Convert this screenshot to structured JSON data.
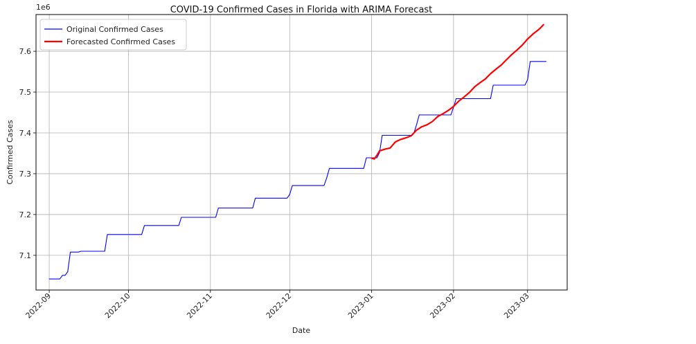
{
  "chart_data": {
    "type": "line",
    "title": "COVID-19 Confirmed Cases in Florida with ARIMA Forecast",
    "xlabel": "Date",
    "ylabel": "Confirmed Cases",
    "y_offset_label": "1e6",
    "y_multiplier": 1000000,
    "xlim": [
      "2022-08-27",
      "2023-03-16"
    ],
    "ylim": [
      7.015,
      7.69
    ],
    "x_ticks": [
      {
        "date": "2022-09-01",
        "label": "2022-09"
      },
      {
        "date": "2022-10-01",
        "label": "2022-10"
      },
      {
        "date": "2022-11-01",
        "label": "2022-11"
      },
      {
        "date": "2022-12-01",
        "label": "2022-12"
      },
      {
        "date": "2023-01-01",
        "label": "2023-01"
      },
      {
        "date": "2023-02-01",
        "label": "2023-02"
      },
      {
        "date": "2023-03-01",
        "label": "2023-03"
      }
    ],
    "y_ticks": [
      {
        "value": 7.1,
        "label": "7.1"
      },
      {
        "value": 7.2,
        "label": "7.2"
      },
      {
        "value": 7.3,
        "label": "7.3"
      },
      {
        "value": 7.4,
        "label": "7.4"
      },
      {
        "value": 7.5,
        "label": "7.5"
      },
      {
        "value": 7.6,
        "label": "7.6"
      }
    ],
    "grid": true,
    "legend_placement": "top-left",
    "series": [
      {
        "name": "Original Confirmed Cases",
        "color": "#0000ff",
        "points": [
          [
            "2022-09-01",
            7.042
          ],
          [
            "2022-09-05",
            7.042
          ],
          [
            "2022-09-06",
            7.051
          ],
          [
            "2022-09-07",
            7.051
          ],
          [
            "2022-09-08",
            7.06
          ],
          [
            "2022-09-09",
            7.108
          ],
          [
            "2022-09-12",
            7.108
          ],
          [
            "2022-09-13",
            7.11
          ],
          [
            "2022-09-22",
            7.11
          ],
          [
            "2022-09-23",
            7.151
          ],
          [
            "2022-10-06",
            7.151
          ],
          [
            "2022-10-07",
            7.173
          ],
          [
            "2022-10-20",
            7.173
          ],
          [
            "2022-10-21",
            7.193
          ],
          [
            "2022-11-03",
            7.193
          ],
          [
            "2022-11-04",
            7.216
          ],
          [
            "2022-11-17",
            7.216
          ],
          [
            "2022-11-18",
            7.24
          ],
          [
            "2022-11-30",
            7.24
          ],
          [
            "2022-12-01",
            7.249
          ],
          [
            "2022-12-02",
            7.271
          ],
          [
            "2022-12-14",
            7.271
          ],
          [
            "2022-12-15",
            7.29
          ],
          [
            "2022-12-16",
            7.313
          ],
          [
            "2022-12-29",
            7.313
          ],
          [
            "2022-12-30",
            7.339
          ],
          [
            "2023-01-03",
            7.339
          ],
          [
            "2023-01-04",
            7.352
          ],
          [
            "2023-01-05",
            7.394
          ],
          [
            "2023-01-16",
            7.394
          ],
          [
            "2023-01-17",
            7.4
          ],
          [
            "2023-01-18",
            7.42
          ],
          [
            "2023-01-19",
            7.444
          ],
          [
            "2023-01-31",
            7.444
          ],
          [
            "2023-02-01",
            7.463
          ],
          [
            "2023-02-02",
            7.484
          ],
          [
            "2023-02-15",
            7.484
          ],
          [
            "2023-02-16",
            7.517
          ],
          [
            "2023-02-28",
            7.517
          ],
          [
            "2023-03-01",
            7.53
          ],
          [
            "2023-03-02",
            7.575
          ],
          [
            "2023-03-08",
            7.575
          ]
        ]
      },
      {
        "name": "Forecasted Confirmed Cases",
        "color": "#ff0000",
        "points": [
          [
            "2023-01-01",
            7.338
          ],
          [
            "2023-01-02",
            7.336
          ],
          [
            "2023-01-03",
            7.345
          ],
          [
            "2023-01-04",
            7.356
          ],
          [
            "2023-01-06",
            7.36
          ],
          [
            "2023-01-08",
            7.363
          ],
          [
            "2023-01-10",
            7.378
          ],
          [
            "2023-01-12",
            7.384
          ],
          [
            "2023-01-14",
            7.388
          ],
          [
            "2023-01-16",
            7.393
          ],
          [
            "2023-01-18",
            7.407
          ],
          [
            "2023-01-20",
            7.415
          ],
          [
            "2023-01-22",
            7.42
          ],
          [
            "2023-01-24",
            7.428
          ],
          [
            "2023-01-26",
            7.44
          ],
          [
            "2023-01-28",
            7.447
          ],
          [
            "2023-01-30",
            7.455
          ],
          [
            "2023-02-01",
            7.465
          ],
          [
            "2023-02-03",
            7.478
          ],
          [
            "2023-02-05",
            7.488
          ],
          [
            "2023-02-07",
            7.499
          ],
          [
            "2023-02-09",
            7.513
          ],
          [
            "2023-02-11",
            7.523
          ],
          [
            "2023-02-13",
            7.532
          ],
          [
            "2023-02-15",
            7.545
          ],
          [
            "2023-02-17",
            7.556
          ],
          [
            "2023-02-19",
            7.566
          ],
          [
            "2023-02-21",
            7.579
          ],
          [
            "2023-02-23",
            7.592
          ],
          [
            "2023-02-25",
            7.603
          ],
          [
            "2023-02-27",
            7.615
          ],
          [
            "2023-03-01",
            7.63
          ],
          [
            "2023-03-03",
            7.642
          ],
          [
            "2023-03-05",
            7.652
          ],
          [
            "2023-03-06",
            7.658
          ],
          [
            "2023-03-07",
            7.665
          ]
        ]
      }
    ]
  }
}
